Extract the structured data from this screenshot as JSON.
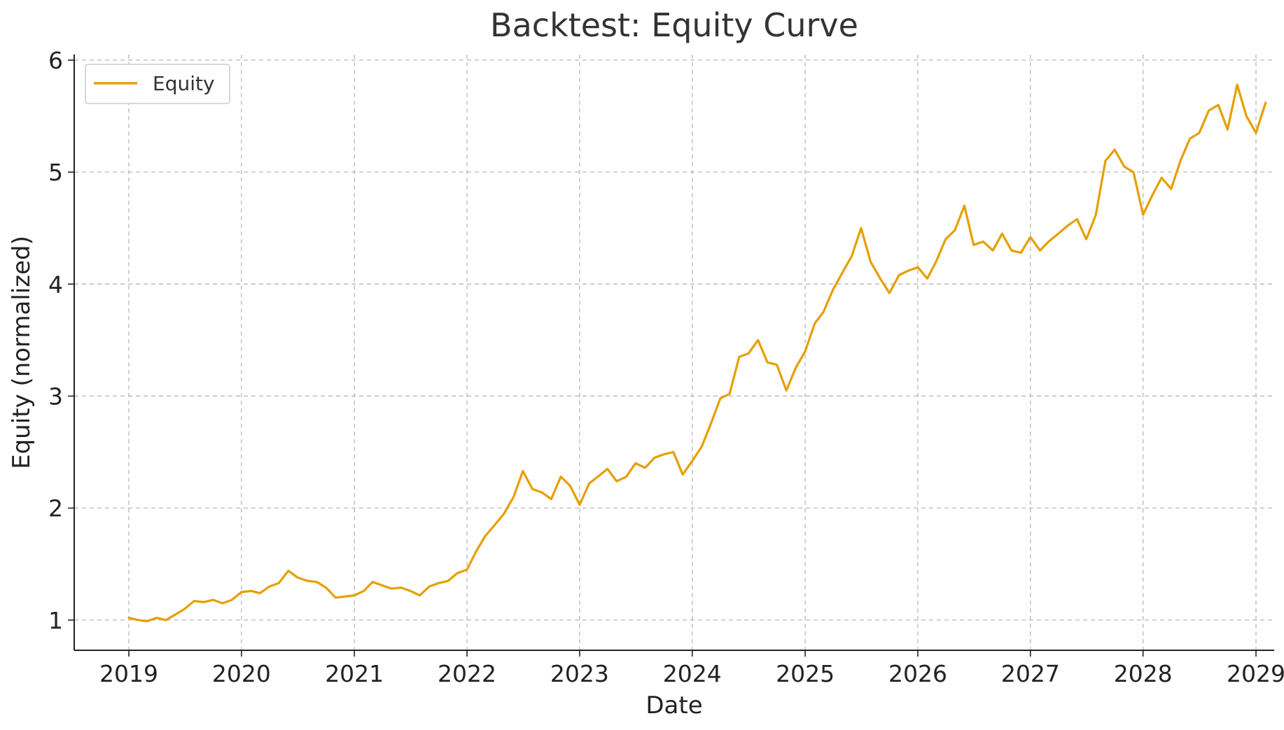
{
  "chart_data": {
    "type": "line",
    "title": "Backtest: Equity Curve",
    "xlabel": "Date",
    "ylabel": "Equity (normalized)",
    "x_ticks": [
      "2019",
      "2020",
      "2021",
      "2022",
      "2023",
      "2024",
      "2025",
      "2026",
      "2027",
      "2028",
      "2029"
    ],
    "y_ticks": [
      "1",
      "2",
      "3",
      "4",
      "5",
      "6"
    ],
    "xlim": [
      "2018-07-08",
      "2029-03-01"
    ],
    "ylim": [
      0.73,
      6.05
    ],
    "grid": true,
    "legend": {
      "position": "top-left",
      "entries": [
        "Equity"
      ]
    },
    "series": [
      {
        "name": "Equity",
        "color": "#E69F00",
        "points": [
          [
            "2019-01-01",
            1.02
          ],
          [
            "2019-02-01",
            1.0
          ],
          [
            "2019-03-01",
            0.99
          ],
          [
            "2019-04-01",
            1.02
          ],
          [
            "2019-05-01",
            1.0
          ],
          [
            "2019-06-01",
            1.05
          ],
          [
            "2019-07-01",
            1.1
          ],
          [
            "2019-08-01",
            1.17
          ],
          [
            "2019-09-01",
            1.16
          ],
          [
            "2019-10-01",
            1.18
          ],
          [
            "2019-11-01",
            1.15
          ],
          [
            "2019-12-01",
            1.18
          ],
          [
            "2020-01-01",
            1.25
          ],
          [
            "2020-02-01",
            1.26
          ],
          [
            "2020-03-01",
            1.24
          ],
          [
            "2020-04-01",
            1.3
          ],
          [
            "2020-05-01",
            1.33
          ],
          [
            "2020-06-01",
            1.44
          ],
          [
            "2020-07-01",
            1.38
          ],
          [
            "2020-08-01",
            1.35
          ],
          [
            "2020-09-01",
            1.34
          ],
          [
            "2020-10-01",
            1.29
          ],
          [
            "2020-11-01",
            1.2
          ],
          [
            "2020-12-01",
            1.21
          ],
          [
            "2021-01-01",
            1.22
          ],
          [
            "2021-02-01",
            1.26
          ],
          [
            "2021-03-01",
            1.34
          ],
          [
            "2021-04-01",
            1.31
          ],
          [
            "2021-05-01",
            1.28
          ],
          [
            "2021-06-01",
            1.29
          ],
          [
            "2021-07-01",
            1.26
          ],
          [
            "2021-08-01",
            1.22
          ],
          [
            "2021-09-01",
            1.3
          ],
          [
            "2021-10-01",
            1.33
          ],
          [
            "2021-11-01",
            1.35
          ],
          [
            "2021-12-01",
            1.42
          ],
          [
            "2022-01-01",
            1.45
          ],
          [
            "2022-02-01",
            1.62
          ],
          [
            "2022-03-01",
            1.75
          ],
          [
            "2022-04-01",
            1.85
          ],
          [
            "2022-05-01",
            1.95
          ],
          [
            "2022-06-01",
            2.1
          ],
          [
            "2022-07-01",
            2.33
          ],
          [
            "2022-08-01",
            2.17
          ],
          [
            "2022-09-01",
            2.14
          ],
          [
            "2022-10-01",
            2.08
          ],
          [
            "2022-11-01",
            2.28
          ],
          [
            "2022-12-01",
            2.2
          ],
          [
            "2023-01-01",
            2.03
          ],
          [
            "2023-02-01",
            2.22
          ],
          [
            "2023-03-01",
            2.28
          ],
          [
            "2023-04-01",
            2.35
          ],
          [
            "2023-05-01",
            2.24
          ],
          [
            "2023-06-01",
            2.28
          ],
          [
            "2023-07-01",
            2.4
          ],
          [
            "2023-08-01",
            2.36
          ],
          [
            "2023-09-01",
            2.45
          ],
          [
            "2023-10-01",
            2.48
          ],
          [
            "2023-11-01",
            2.5
          ],
          [
            "2023-12-01",
            2.3
          ],
          [
            "2024-01-01",
            2.42
          ],
          [
            "2024-02-01",
            2.55
          ],
          [
            "2024-03-01",
            2.75
          ],
          [
            "2024-04-01",
            2.98
          ],
          [
            "2024-05-01",
            3.02
          ],
          [
            "2024-06-01",
            3.35
          ],
          [
            "2024-07-01",
            3.38
          ],
          [
            "2024-08-01",
            3.5
          ],
          [
            "2024-09-01",
            3.3
          ],
          [
            "2024-10-01",
            3.28
          ],
          [
            "2024-11-01",
            3.05
          ],
          [
            "2024-12-01",
            3.25
          ],
          [
            "2025-01-01",
            3.4
          ],
          [
            "2025-02-01",
            3.65
          ],
          [
            "2025-03-01",
            3.75
          ],
          [
            "2025-04-01",
            3.95
          ],
          [
            "2025-05-01",
            4.1
          ],
          [
            "2025-06-01",
            4.25
          ],
          [
            "2025-07-01",
            4.5
          ],
          [
            "2025-08-01",
            4.2
          ],
          [
            "2025-09-01",
            4.05
          ],
          [
            "2025-10-01",
            3.92
          ],
          [
            "2025-11-01",
            4.08
          ],
          [
            "2025-12-01",
            4.12
          ],
          [
            "2026-01-01",
            4.15
          ],
          [
            "2026-02-01",
            4.05
          ],
          [
            "2026-03-01",
            4.2
          ],
          [
            "2026-04-01",
            4.4
          ],
          [
            "2026-05-01",
            4.48
          ],
          [
            "2026-06-01",
            4.7
          ],
          [
            "2026-07-01",
            4.35
          ],
          [
            "2026-08-01",
            4.38
          ],
          [
            "2026-09-01",
            4.3
          ],
          [
            "2026-10-01",
            4.45
          ],
          [
            "2026-11-01",
            4.3
          ],
          [
            "2026-12-01",
            4.28
          ],
          [
            "2027-01-01",
            4.42
          ],
          [
            "2027-02-01",
            4.3
          ],
          [
            "2027-03-01",
            4.38
          ],
          [
            "2027-04-01",
            4.45
          ],
          [
            "2027-05-01",
            4.52
          ],
          [
            "2027-06-01",
            4.58
          ],
          [
            "2027-07-01",
            4.4
          ],
          [
            "2027-08-01",
            4.62
          ],
          [
            "2027-09-01",
            5.1
          ],
          [
            "2027-10-01",
            5.2
          ],
          [
            "2027-11-01",
            5.05
          ],
          [
            "2027-12-01",
            5.0
          ],
          [
            "2028-01-01",
            4.62
          ],
          [
            "2028-02-01",
            4.8
          ],
          [
            "2028-03-01",
            4.95
          ],
          [
            "2028-04-01",
            4.85
          ],
          [
            "2028-05-01",
            5.1
          ],
          [
            "2028-06-01",
            5.3
          ],
          [
            "2028-07-01",
            5.35
          ],
          [
            "2028-08-01",
            5.55
          ],
          [
            "2028-09-01",
            5.6
          ],
          [
            "2028-10-01",
            5.38
          ],
          [
            "2028-11-01",
            5.78
          ],
          [
            "2028-12-01",
            5.5
          ],
          [
            "2029-01-01",
            5.35
          ],
          [
            "2029-02-01",
            5.62
          ]
        ]
      }
    ]
  }
}
